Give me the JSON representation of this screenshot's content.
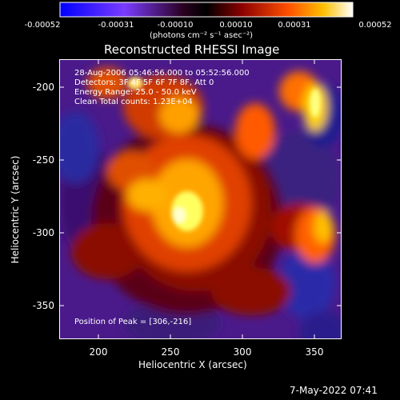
{
  "colorbar": {
    "tick_labels": [
      "-0.00052",
      "-0.00031",
      "-0.00010",
      "0.00010",
      "0.00031",
      "0.00052"
    ],
    "units_label": "(photons cm⁻² s⁻¹ asec⁻²)"
  },
  "plot": {
    "title": "Reconstructed RHESSI Image",
    "xlabel": "Heliocentric X (arcsec)",
    "ylabel": "Heliocentric Y (arcsec)",
    "x_ticks": [
      "200",
      "250",
      "300",
      "350"
    ],
    "y_ticks": [
      "-200",
      "-250",
      "-300",
      "-350"
    ],
    "info_lines": [
      "28-Aug-2006 05:46:56.000 to 05:52:56.000",
      "Detectors: 3F 4F 5F 6F 7F 8F, Att 0",
      "Energy Range: 25.0 - 50.0 keV",
      "Clean    Total counts: 1.23E+04"
    ],
    "peak_label": "Position of Peak = [306,-216]"
  },
  "footer": {
    "timestamp": "7-May-2022 07:41"
  },
  "chart_data": {
    "type": "heatmap",
    "title": "Reconstructed RHESSI Image",
    "xlabel": "Heliocentric X (arcsec)",
    "ylabel": "Heliocentric Y (arcsec)",
    "xlim": [
      173,
      367
    ],
    "ylim": [
      -373,
      -182
    ],
    "colorbar_range": [
      -0.00052,
      0.00052
    ],
    "colormap": [
      "#0000ff",
      "#8a2be2",
      "#1a0010",
      "#8b0000",
      "#ff4500",
      "#ffa500",
      "#ffff00",
      "#ffffff"
    ],
    "peak": [
      306,
      -216
    ]
  }
}
